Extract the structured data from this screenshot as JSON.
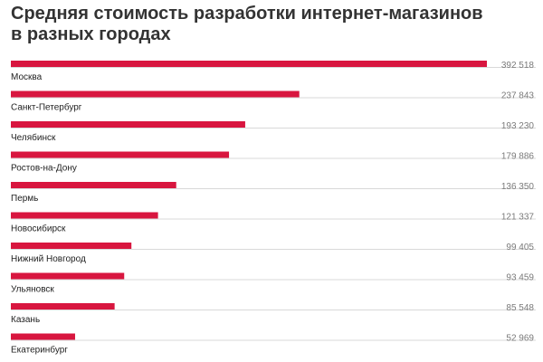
{
  "chart_data": {
    "type": "bar",
    "orientation": "horizontal",
    "title_lines": [
      "Средняя стоимость разработки интернет-магазинов",
      "в разных городах"
    ],
    "categories": [
      "Москва",
      "Санкт-Петербург",
      "Челябинск",
      "Ростов-на-Дону",
      "Пермь",
      "Новосибирск",
      "Нижний Новгород",
      "Ульяновск",
      "Казань",
      "Екатеринбург"
    ],
    "values": [
      392518,
      237843,
      193230,
      179886,
      136350,
      121337,
      99405,
      93459,
      85548,
      52969
    ],
    "value_labels": [
      "392 518",
      "237 843",
      "193 230",
      "179 886",
      "136 350",
      "121 337",
      "99 405",
      "93 459",
      "85 548",
      "52 969"
    ],
    "xlim": [
      0,
      392518
    ],
    "grid": false,
    "legend": "none",
    "bar_color": "#d8163f"
  }
}
